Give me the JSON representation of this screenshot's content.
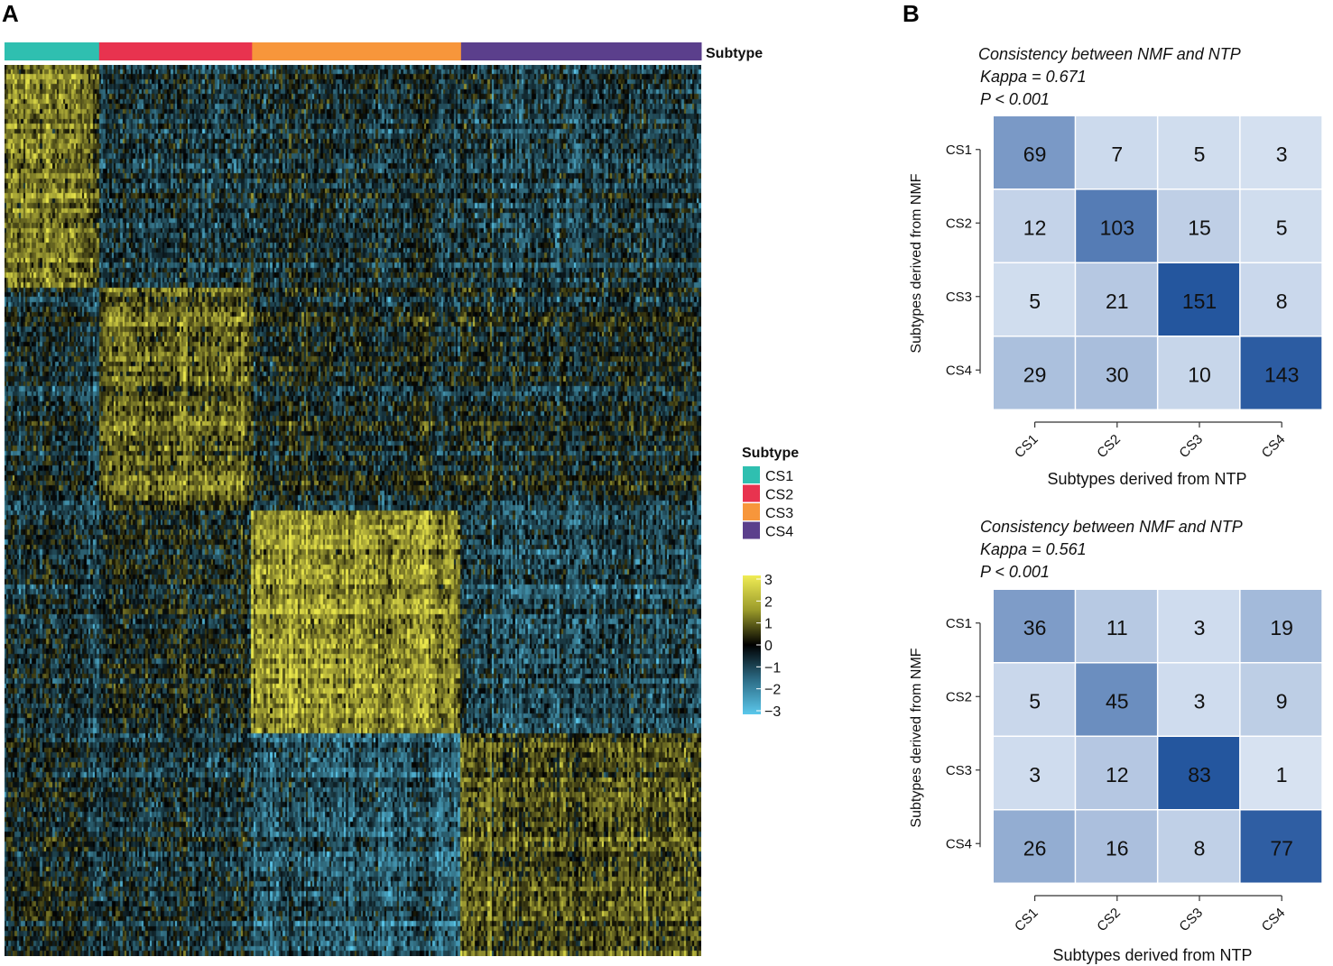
{
  "panels": {
    "a": "A",
    "b": "B"
  },
  "chart_data": [
    {
      "type": "heatmap",
      "annotation_title": "Subtype",
      "annotation_colors": {
        "CS1": "#2fbfb0",
        "CS2": "#e8334f",
        "CS3": "#f7963b",
        "CS4": "#5b3f8c"
      },
      "subtypes": [
        "CS1",
        "CS2",
        "CS3",
        "CS4"
      ],
      "sample_counts": [
        115,
        186,
        254,
        292
      ],
      "gene_blocks": [
        "CS1",
        "CS2",
        "CS3",
        "CS4"
      ],
      "legend": {
        "title": "Subtype",
        "items": [
          {
            "label": "CS1",
            "color": "#2fbfb0"
          },
          {
            "label": "CS2",
            "color": "#e8334f"
          },
          {
            "label": "CS3",
            "color": "#f7963b"
          },
          {
            "label": "CS4",
            "color": "#5b3f8c"
          }
        ]
      },
      "colorscale": {
        "min": -3,
        "max": 3,
        "ticks": [
          "3",
          "2",
          "1",
          "0",
          "−1",
          "−2",
          "−3"
        ],
        "colors": [
          "#5bc8ec",
          "#000000",
          "#e9e64b"
        ]
      }
    },
    {
      "type": "heatmap",
      "title": "Consistency between NMF and NTP",
      "kappa": "Kappa = 0.671",
      "pvalue": "P < 0.001",
      "xlabel": "Subtypes derived from NTP",
      "ylabel": "Subtypes derived from NMF",
      "x": [
        "CS1",
        "CS2",
        "CS3",
        "CS4"
      ],
      "y": [
        "CS1",
        "CS2",
        "CS3",
        "CS4"
      ],
      "values": [
        [
          69,
          7,
          5,
          3
        ],
        [
          12,
          103,
          15,
          5
        ],
        [
          5,
          21,
          151,
          8
        ],
        [
          29,
          30,
          10,
          143
        ]
      ]
    },
    {
      "type": "heatmap",
      "title": "Consistency between NMF and NTP",
      "kappa": "Kappa = 0.561",
      "pvalue": "P < 0.001",
      "xlabel": "Subtypes derived from NTP",
      "ylabel": "Subtypes derived from NMF",
      "x": [
        "CS1",
        "CS2",
        "CS3",
        "CS4"
      ],
      "y": [
        "CS1",
        "CS2",
        "CS3",
        "CS4"
      ],
      "values": [
        [
          36,
          11,
          3,
          19
        ],
        [
          5,
          45,
          3,
          9
        ],
        [
          3,
          12,
          83,
          1
        ],
        [
          26,
          16,
          8,
          77
        ]
      ]
    }
  ]
}
